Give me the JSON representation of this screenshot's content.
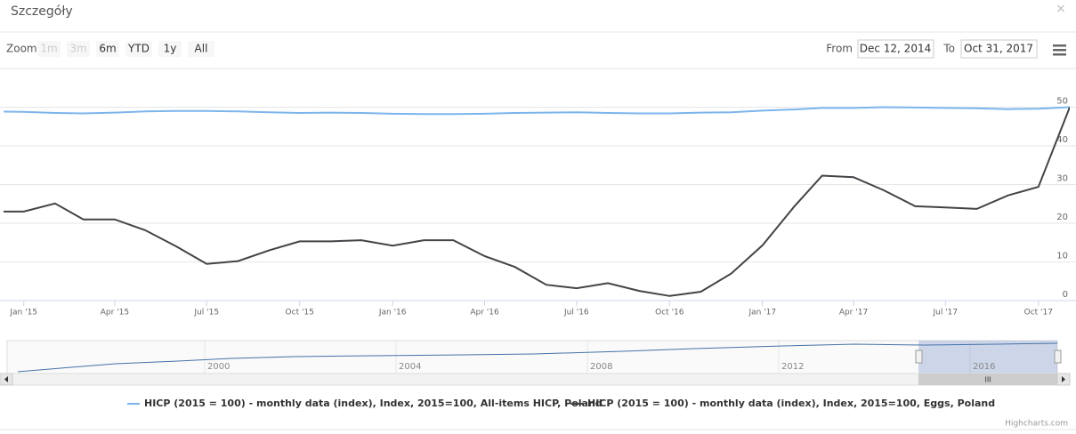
{
  "dialog": {
    "title": "Szczegóły",
    "close": "×"
  },
  "toolbar": {
    "zoom_label": "Zoom",
    "buttons": [
      "1m",
      "3m",
      "6m",
      "YTD",
      "1y",
      "All"
    ],
    "disabled": [
      "1m",
      "3m"
    ],
    "from_label": "From",
    "from": "Dec 12, 2014",
    "to_label": "To",
    "to": "Oct 31, 2017"
  },
  "chart_data": {
    "type": "line",
    "x": [
      "2014-12-01",
      "2015-01-01",
      "2015-02-01",
      "2015-03-01",
      "2015-04-01",
      "2015-05-01",
      "2015-06-01",
      "2015-07-01",
      "2015-08-01",
      "2015-09-01",
      "2015-10-01",
      "2015-11-01",
      "2015-12-01",
      "2016-01-01",
      "2016-02-01",
      "2016-03-01",
      "2016-04-01",
      "2016-05-01",
      "2016-06-01",
      "2016-07-01",
      "2016-08-01",
      "2016-09-01",
      "2016-10-01",
      "2016-11-01",
      "2016-12-01",
      "2017-01-01",
      "2017-02-01",
      "2017-03-01",
      "2017-04-01",
      "2017-05-01",
      "2017-06-01",
      "2017-07-01",
      "2017-08-01",
      "2017-09-01",
      "2017-10-01",
      "2017-11-01"
    ],
    "series": [
      {
        "name": "HICP (2015 = 100) - monthly data (index), Index, 2015=100, All-items HICP, Poland",
        "color": "#7cb5ec",
        "values": [
          48.9,
          48.8,
          48.5,
          48.4,
          48.6,
          48.9,
          49.0,
          49.0,
          48.9,
          48.7,
          48.5,
          48.6,
          48.5,
          48.3,
          48.2,
          48.2,
          48.3,
          48.5,
          48.6,
          48.7,
          48.5,
          48.4,
          48.4,
          48.6,
          48.7,
          49.1,
          49.4,
          49.8,
          49.8,
          50.0,
          49.9,
          49.8,
          49.7,
          49.5,
          49.6,
          50.0
        ]
      },
      {
        "name": "HICP (2015 = 100) - monthly data (index), Index, 2015=100, Eggs, Poland",
        "color": "#434348",
        "values": [
          23,
          23,
          25.1,
          21,
          21,
          18.2,
          14,
          9.5,
          10.2,
          13,
          15.3,
          15.3,
          15.6,
          14.2,
          15.6,
          15.6,
          11.5,
          8.7,
          4.1,
          3.2,
          4.5,
          2.5,
          1.2,
          2.3,
          7,
          14.3,
          24.2,
          32.3,
          31.9,
          28.5,
          24.4,
          24.1,
          23.7,
          27.2,
          29.4,
          50
        ]
      }
    ],
    "xlim": [
      "2014-12-12",
      "2017-11-01"
    ],
    "xticks": [
      {
        "value": "2015-01-01",
        "label": "Jan '15"
      },
      {
        "value": "2015-04-01",
        "label": "Apr '15"
      },
      {
        "value": "2015-07-01",
        "label": "Jul '15"
      },
      {
        "value": "2015-10-01",
        "label": "Oct '15"
      },
      {
        "value": "2016-01-01",
        "label": "Jan '16"
      },
      {
        "value": "2016-04-01",
        "label": "Apr '16"
      },
      {
        "value": "2016-07-01",
        "label": "Jul '16"
      },
      {
        "value": "2016-10-01",
        "label": "Oct '16"
      },
      {
        "value": "2017-01-01",
        "label": "Jan '17"
      },
      {
        "value": "2017-04-01",
        "label": "Apr '17"
      },
      {
        "value": "2017-07-01",
        "label": "Jul '17"
      },
      {
        "value": "2017-10-01",
        "label": "Oct '17"
      }
    ],
    "ylim": [
      0,
      60
    ],
    "yticks": [
      0,
      10,
      20,
      30,
      40,
      50
    ],
    "grid": true,
    "legend": "bottom"
  },
  "navigator": {
    "labels": [
      "2000",
      "2004",
      "2008",
      "2012",
      "2016"
    ],
    "scrollbar_grip": "III"
  },
  "credits": "Highcharts.com"
}
